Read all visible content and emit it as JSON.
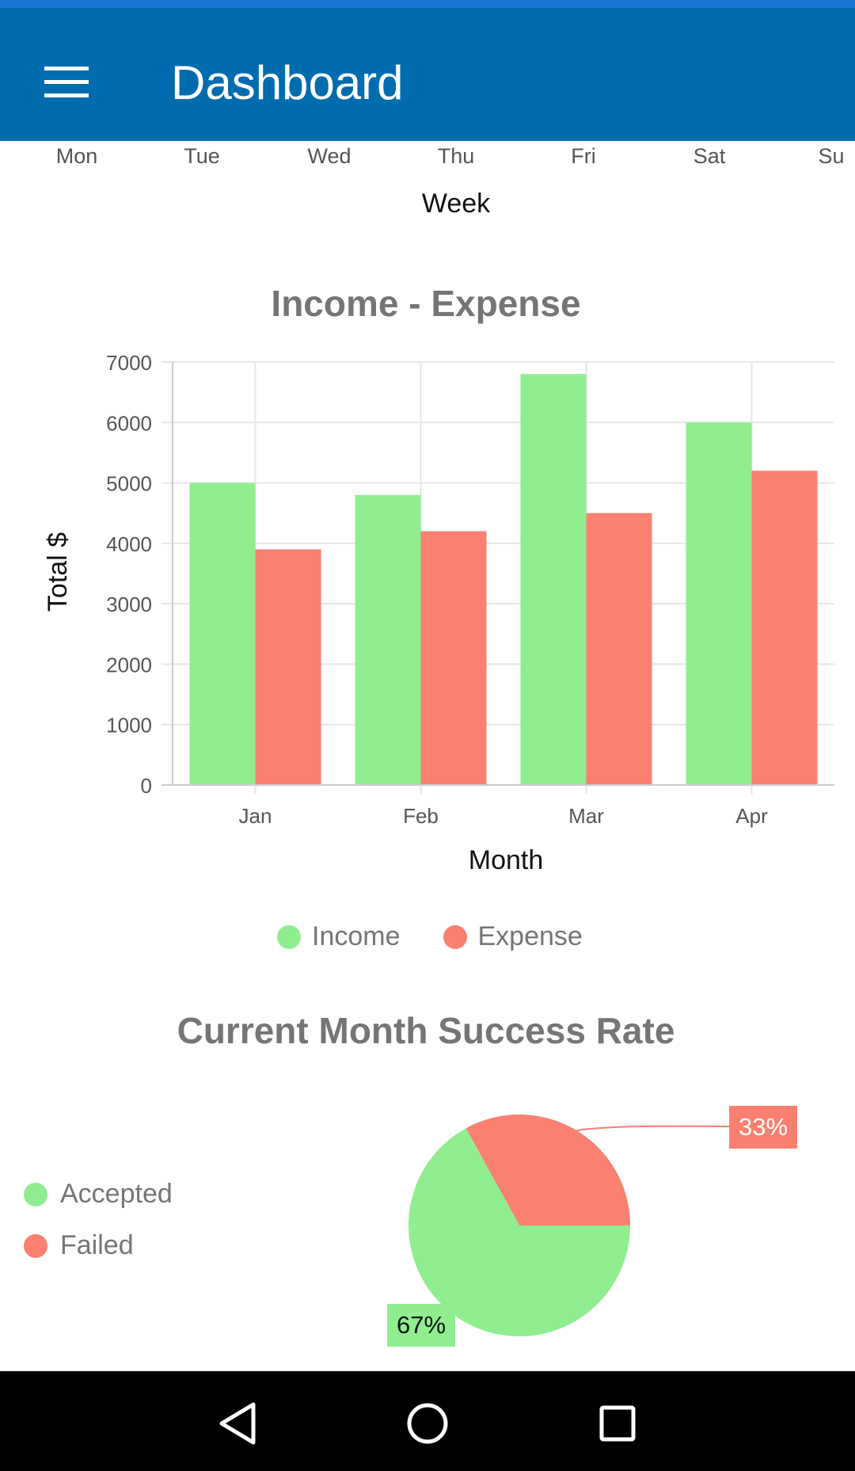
{
  "app_bar": {
    "title": "Dashboard",
    "menu_icon": "hamburger-menu-icon",
    "color": "#006CAE"
  },
  "week_chart_partial": {
    "tick_labels": [
      "Mon",
      "Tue",
      "Wed",
      "Thu",
      "Fri",
      "Sat",
      "Su"
    ],
    "xlabel": "Week"
  },
  "chart_data": [
    {
      "type": "bar",
      "title": "Income - Expense",
      "categories": [
        "Jan",
        "Feb",
        "Mar",
        "Apr"
      ],
      "series": [
        {
          "name": "Income",
          "values": [
            5000,
            4800,
            6800,
            6000
          ],
          "color": "#90EE90"
        },
        {
          "name": "Expense",
          "values": [
            3900,
            4200,
            4500,
            5200
          ],
          "color": "#FA8072"
        }
      ],
      "xlabel": "Month",
      "ylabel": "Total $",
      "ylim": [
        0,
        7000
      ],
      "yticks": [
        "0",
        "1000",
        "2000",
        "3000",
        "4000",
        "5000",
        "6000",
        "7000"
      ],
      "grid": true,
      "legend_placement": "bottom-center"
    },
    {
      "type": "pie",
      "title": "Current Month Success Rate",
      "slices": [
        {
          "name": "Accepted",
          "value": 67,
          "label": "67%",
          "color": "#90EE90"
        },
        {
          "name": "Failed",
          "value": 33,
          "label": "33%",
          "color": "#FA8072"
        }
      ],
      "legend_placement": "left"
    }
  ],
  "nav_bar": {
    "back_icon": "back-triangle-icon",
    "home_icon": "home-circle-icon",
    "recents_icon": "recents-square-icon"
  }
}
